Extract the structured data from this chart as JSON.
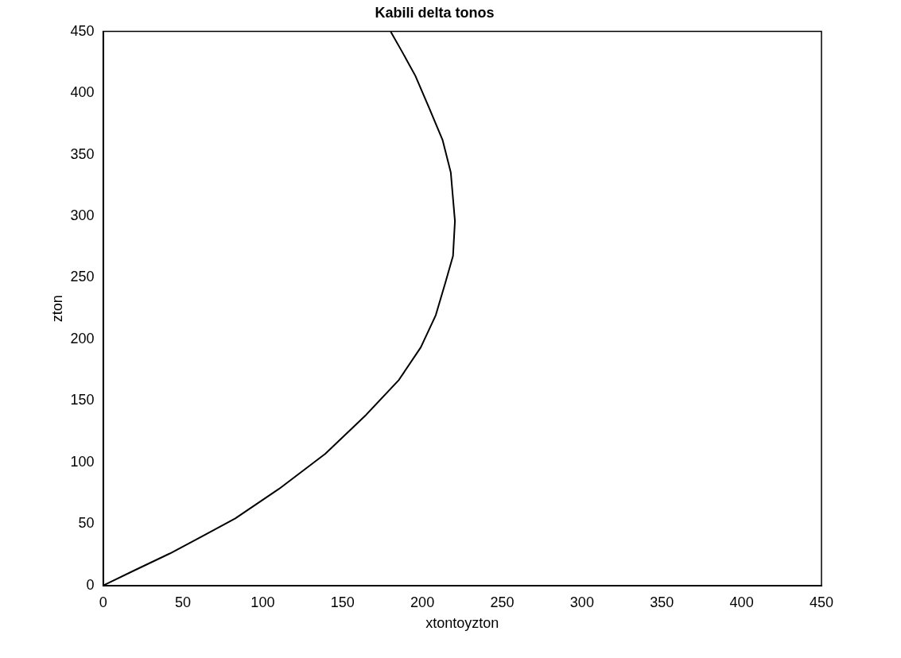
{
  "chart_data": {
    "type": "line",
    "title": "Kabili delta tonos",
    "xlabel": "xtontoyzton",
    "ylabel": "zton",
    "x": [
      0,
      19.6,
      41.8,
      62.3,
      82.8,
      110.2,
      139.2,
      164.8,
      185.3,
      199,
      208.4,
      214.4,
      219.2,
      220.4,
      217.8,
      212.7,
      204.2,
      195.6,
      187.1,
      180.2
    ],
    "values": [
      0,
      12.3,
      26,
      40.2,
      54.5,
      78.5,
      107,
      138.7,
      167,
      193.4,
      219.6,
      245.9,
      267.7,
      296,
      335.5,
      361.7,
      388,
      414,
      434,
      449.7
    ],
    "color": "#000000",
    "marker": "none",
    "line_style": "solid",
    "xlim": [
      0,
      450
    ],
    "ylim": [
      0,
      450
    ],
    "xticks": [
      0,
      50,
      100,
      150,
      200,
      250,
      300,
      350,
      400,
      450
    ],
    "yticks": [
      0,
      50,
      100,
      150,
      200,
      250,
      300,
      350,
      400,
      450
    ]
  }
}
